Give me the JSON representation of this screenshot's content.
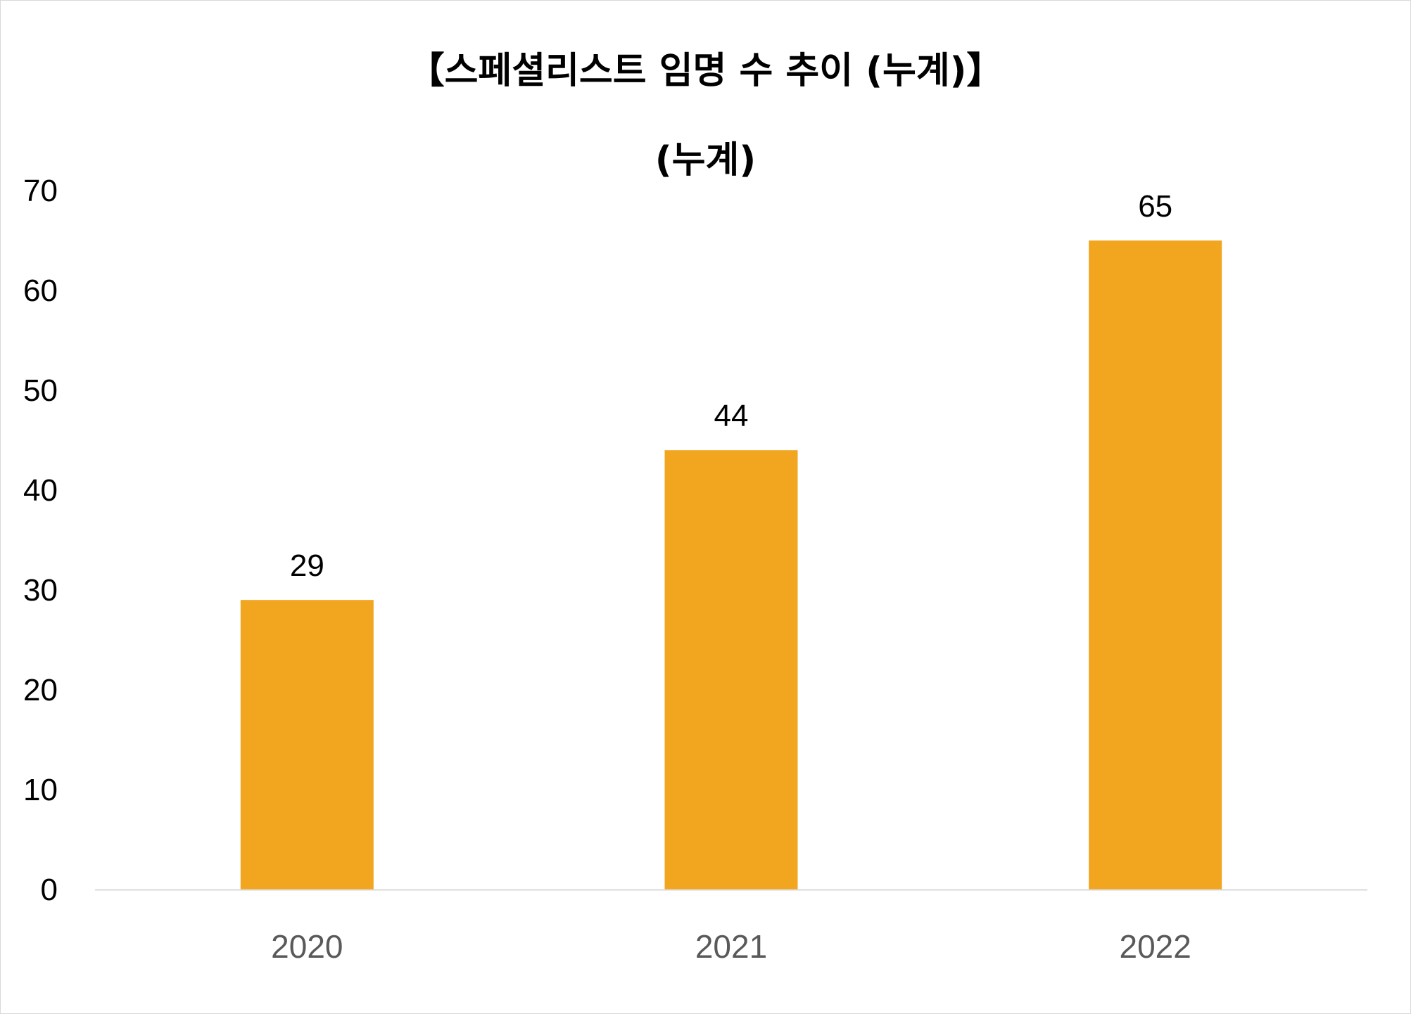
{
  "chart_data": {
    "type": "bar",
    "title": "【스페셜리스트 임명 수 추이 (누계)】",
    "subtitle": "(누계)",
    "categories": [
      "2020",
      "2021",
      "2022"
    ],
    "values": [
      29,
      44,
      65
    ],
    "data_labels": [
      "29",
      "44",
      "65"
    ],
    "ylim": [
      0,
      70
    ],
    "yticks": [
      0,
      10,
      20,
      30,
      40,
      50,
      60,
      70
    ],
    "xlabel": "",
    "ylabel": "",
    "grid": false,
    "legend": "none",
    "bar_color": "#F2A51F",
    "axis_color": "#D9D9D9"
  }
}
